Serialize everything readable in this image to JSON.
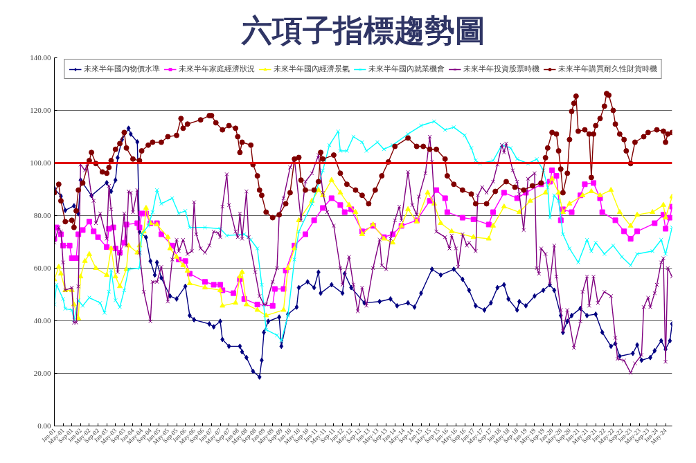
{
  "chart_data": {
    "type": "line",
    "title": "六項子指標趨勢圖",
    "xlim": [
      "2001-01",
      "2024-08"
    ],
    "ylim": [
      0,
      140
    ],
    "yticks": [
      {
        "value": 0,
        "label": "0.00"
      },
      {
        "value": 20,
        "label": "20.00"
      },
      {
        "value": 40,
        "label": "40.00"
      },
      {
        "value": 60,
        "label": "60.00"
      },
      {
        "value": 80,
        "label": "80.00"
      },
      {
        "value": 100,
        "label": "100.00"
      },
      {
        "value": 120,
        "label": "120.00"
      },
      {
        "value": 140,
        "label": "140.00"
      }
    ],
    "xticks": [
      {
        "value": "2001-01",
        "label": "Jan-01"
      },
      {
        "value": "2001-05",
        "label": "May-01"
      },
      {
        "value": "2001-09",
        "label": "Sep-01"
      },
      {
        "value": "2002-01",
        "label": "Jan-02"
      },
      {
        "value": "2002-05",
        "label": "May-02"
      },
      {
        "value": "2002-09",
        "label": "Sep-02"
      },
      {
        "value": "2003-01",
        "label": "Jan-03"
      },
      {
        "value": "2003-05",
        "label": "May-03"
      },
      {
        "value": "2003-09",
        "label": "Sep-03"
      },
      {
        "value": "2004-01",
        "label": "Jan-04"
      },
      {
        "value": "2004-05",
        "label": "May-04"
      },
      {
        "value": "2004-09",
        "label": "Sep-04"
      },
      {
        "value": "2005-01",
        "label": "Jan-05"
      },
      {
        "value": "2005-05",
        "label": "May-05"
      },
      {
        "value": "2005-09",
        "label": "Sep-05"
      },
      {
        "value": "2006-01",
        "label": "Jan-06"
      },
      {
        "value": "2006-05",
        "label": "May-06"
      },
      {
        "value": "2006-09",
        "label": "Sep-06"
      },
      {
        "value": "2007-01",
        "label": "Jan-07"
      },
      {
        "value": "2007-05",
        "label": "May-07"
      },
      {
        "value": "2007-09",
        "label": "Sep-07"
      },
      {
        "value": "2008-01",
        "label": "Jan-08"
      },
      {
        "value": "2008-05",
        "label": "May-08"
      },
      {
        "value": "2008-09",
        "label": "Sep-08"
      },
      {
        "value": "2009-01",
        "label": "Jan-09"
      },
      {
        "value": "2009-05",
        "label": "May-09"
      },
      {
        "value": "2009-09",
        "label": "Sep-09"
      },
      {
        "value": "2010-01",
        "label": "Jan-10"
      },
      {
        "value": "2010-05",
        "label": "May-10"
      },
      {
        "value": "2010-09",
        "label": "Sep-10"
      },
      {
        "value": "2011-01",
        "label": "Jan-11"
      },
      {
        "value": "2011-05",
        "label": "May-11"
      },
      {
        "value": "2011-09",
        "label": "Sep-11"
      },
      {
        "value": "2012-01",
        "label": "Jan-12"
      },
      {
        "value": "2012-05",
        "label": "May-12"
      },
      {
        "value": "2012-09",
        "label": "Sep-12"
      },
      {
        "value": "2013-01",
        "label": "Jan-13"
      },
      {
        "value": "2013-05",
        "label": "May-13"
      },
      {
        "value": "2013-09",
        "label": "Sep-13"
      },
      {
        "value": "2014-01",
        "label": "Jan-14"
      },
      {
        "value": "2014-05",
        "label": "May-14"
      },
      {
        "value": "2014-09",
        "label": "Sep-14"
      },
      {
        "value": "2015-01",
        "label": "Jan-15"
      },
      {
        "value": "2015-05",
        "label": "May-15"
      },
      {
        "value": "2015-09",
        "label": "Sep-15"
      },
      {
        "value": "2016-01",
        "label": "Jan-16"
      },
      {
        "value": "2016-05",
        "label": "May-16"
      },
      {
        "value": "2016-09",
        "label": "Sep-16"
      },
      {
        "value": "2017-01",
        "label": "Jan-17"
      },
      {
        "value": "2017-05",
        "label": "May-17"
      },
      {
        "value": "2017-09",
        "label": "Sep-17"
      },
      {
        "value": "2018-01",
        "label": "Jan-18"
      },
      {
        "value": "2018-05",
        "label": "May-18"
      },
      {
        "value": "2018-09",
        "label": "Sep-18"
      },
      {
        "value": "2019-01",
        "label": "Jan-19"
      },
      {
        "value": "2019-05",
        "label": "May-19"
      },
      {
        "value": "2019-09",
        "label": "Sep-19"
      },
      {
        "value": "2020-01",
        "label": "Jan-20"
      },
      {
        "value": "2020-05",
        "label": "May-20"
      },
      {
        "value": "2020-09",
        "label": "Sep-20"
      },
      {
        "value": "2021-01",
        "label": "Jan-21"
      },
      {
        "value": "2021-05",
        "label": "May-21"
      },
      {
        "value": "2021-09",
        "label": "Sep-21"
      },
      {
        "value": "2022-01",
        "label": "Jan-22"
      },
      {
        "value": "2022-05",
        "label": "May-22"
      },
      {
        "value": "2022-09",
        "label": "Sep-22"
      },
      {
        "value": "2023-01",
        "label": "Jan-23"
      },
      {
        "value": "2023-05",
        "label": "May-23"
      },
      {
        "value": "2023-09",
        "label": "Sep-23"
      },
      {
        "value": "2024-01",
        "label": "Jan-24"
      },
      {
        "value": "2024-05",
        "label": "May-24"
      }
    ],
    "grid": "y",
    "legend": "top",
    "ref_lines": [
      {
        "axis": "y",
        "value": 100,
        "color": "#e00000"
      }
    ],
    "series": [
      {
        "name": "未來半年國內物價水準",
        "color": "#000080",
        "marker": "diamond",
        "x": [
          "2001-01",
          "2001-04",
          "2001-06",
          "2001-10",
          "2001-12",
          "2002-01",
          "2002-06",
          "2003-01",
          "2003-03",
          "2003-05",
          "2003-06",
          "2003-08",
          "2003-11",
          "2003-12",
          "2004-03",
          "2004-04",
          "2004-07",
          "2004-09",
          "2004-11",
          "2004-12",
          "2005-02",
          "2005-06",
          "2005-09",
          "2006-01",
          "2006-03",
          "2006-05",
          "2006-12",
          "2007-02",
          "2007-05",
          "2007-06",
          "2007-09",
          "2008-02",
          "2008-03",
          "2008-05",
          "2008-08",
          "2008-11",
          "2008-12",
          "2009-01",
          "2009-03",
          "2009-08",
          "2009-09",
          "2009-12",
          "2010-04",
          "2010-05",
          "2010-09",
          "2010-12",
          "2011-02",
          "2011-03",
          "2011-08",
          "2012-01",
          "2012-02",
          "2012-05",
          "2012-11",
          "2013-06",
          "2013-11",
          "2014-02",
          "2014-07",
          "2014-10",
          "2015-01",
          "2015-06",
          "2015-10",
          "2016-04",
          "2016-08",
          "2016-11",
          "2017-02",
          "2017-06",
          "2017-09",
          "2017-12",
          "2018-03",
          "2018-05",
          "2018-09",
          "2018-10",
          "2019-01",
          "2019-05",
          "2019-09",
          "2019-12",
          "2020-02",
          "2020-05",
          "2020-06",
          "2020-08",
          "2020-10",
          "2021-02",
          "2021-05",
          "2021-09",
          "2021-12",
          "2022-04",
          "2022-06",
          "2022-08",
          "2023-02",
          "2023-04",
          "2023-06",
          "2023-10",
          "2023-12",
          "2024-03",
          "2024-05",
          "2024-07",
          "2024-08"
        ],
        "values": [
          90.3,
          87.4,
          82,
          83.7,
          80.7,
          93.5,
          87.6,
          92.5,
          89.2,
          93.5,
          102,
          108.9,
          113.2,
          111,
          108,
          73.8,
          71.7,
          62.7,
          57.4,
          62.2,
          56.3,
          49.4,
          48.3,
          53.1,
          42,
          40.4,
          38.8,
          37.7,
          39.8,
          32.9,
          30.3,
          30.3,
          28.2,
          26,
          20.8,
          18.6,
          25,
          35.6,
          39.8,
          41.4,
          30.3,
          42.5,
          45.2,
          52.6,
          54.8,
          52.6,
          58.5,
          50.5,
          53.7,
          50.5,
          57.9,
          52.6,
          46.8,
          47.3,
          48.3,
          45.7,
          46.8,
          45.2,
          50.5,
          59.6,
          57.4,
          59.6,
          55.8,
          51.6,
          45.7,
          44.1,
          46.8,
          52.6,
          53.7,
          48.3,
          44.1,
          47.3,
          45.7,
          49.4,
          51.6,
          53.7,
          51.6,
          42,
          35.6,
          39.8,
          42,
          44.7,
          42,
          42.5,
          35.6,
          30.3,
          31.3,
          26.5,
          27.6,
          30.8,
          25,
          26,
          28.6,
          32.4,
          29.2,
          32.4,
          38.8
        ]
      },
      {
        "name": "未來半年家庭經濟狀況",
        "color": "#ff00ff",
        "marker": "square",
        "x": [
          "2001-01",
          "2001-02",
          "2001-04",
          "2001-05",
          "2001-08",
          "2001-09",
          "2001-11",
          "2001-12",
          "2002-02",
          "2002-05",
          "2002-07",
          "2002-09",
          "2003-01",
          "2003-02",
          "2003-04",
          "2003-05",
          "2003-07",
          "2003-09",
          "2003-10",
          "2004-03",
          "2004-04",
          "2004-05",
          "2004-07",
          "2004-09",
          "2004-12",
          "2005-02",
          "2005-07",
          "2005-10",
          "2006-01",
          "2006-03",
          "2006-10",
          "2007-02",
          "2007-05",
          "2007-06",
          "2007-11",
          "2008-02",
          "2008-04",
          "2008-10",
          "2009-05",
          "2009-06",
          "2009-10",
          "2009-11",
          "2010-03",
          "2010-08",
          "2010-12",
          "2011-04",
          "2011-08",
          "2011-12",
          "2012-02",
          "2012-05",
          "2012-10",
          "2013-03",
          "2013-08",
          "2013-12",
          "2014-04",
          "2014-11",
          "2015-05",
          "2015-08",
          "2015-12",
          "2016-01",
          "2016-08",
          "2017-01",
          "2017-08",
          "2017-10",
          "2018-03",
          "2018-09",
          "2019-01",
          "2019-08",
          "2019-12",
          "2020-01",
          "2020-03",
          "2020-05",
          "2020-06",
          "2020-10",
          "2021-02",
          "2021-04",
          "2021-08",
          "2021-11",
          "2021-12",
          "2022-06",
          "2022-10",
          "2023-01",
          "2023-04",
          "2023-12",
          "2024-04",
          "2024-05",
          "2024-07",
          "2024-08"
        ],
        "values": [
          71.2,
          75.5,
          72.9,
          68.6,
          68.6,
          63.8,
          63.8,
          72.9,
          74.5,
          77.7,
          74,
          71.8,
          68,
          75,
          75.5,
          67.5,
          65.9,
          69.7,
          76.6,
          77.1,
          75.5,
          80.8,
          80.8,
          77.1,
          77.1,
          72.9,
          68.6,
          63.3,
          62.7,
          57.9,
          54.8,
          53.7,
          53.7,
          51.6,
          50.5,
          55.8,
          48.3,
          46.2,
          45.7,
          52.1,
          52.1,
          59.1,
          68.6,
          72.9,
          78.2,
          82.9,
          86.6,
          84,
          81.3,
          82.4,
          74,
          76.1,
          71.8,
          72.9,
          76.1,
          78.2,
          85.6,
          89.7,
          86.6,
          81.3,
          79.2,
          78.6,
          76.6,
          81.3,
          88.7,
          86.6,
          88.7,
          91.9,
          92.9,
          97.2,
          95.1,
          78.2,
          82.4,
          81.3,
          87.7,
          91.9,
          92.4,
          86.6,
          81.3,
          78.2,
          74,
          71.2,
          74,
          77.1,
          80.3,
          75,
          79.2,
          83.4
        ]
      },
      {
        "name": "未來半年國內經濟景氣",
        "color": "#ffff00",
        "marker": "triangle",
        "x": [
          "2001-01",
          "2001-03",
          "2001-04",
          "2001-06",
          "2001-09",
          "2001-10",
          "2001-12",
          "2002-01",
          "2002-03",
          "2002-05",
          "2002-08",
          "2003-01",
          "2003-03",
          "2003-05",
          "2003-07",
          "2003-10",
          "2003-11",
          "2004-03",
          "2004-04",
          "2004-06",
          "2004-07",
          "2004-09",
          "2004-12",
          "2005-05",
          "2005-06",
          "2005-09",
          "2005-12",
          "2006-02",
          "2006-03",
          "2006-10",
          "2007-05",
          "2007-06",
          "2007-12",
          "2008-02",
          "2008-03",
          "2008-05",
          "2008-10",
          "2009-02",
          "2009-10",
          "2009-12",
          "2010-03",
          "2010-05",
          "2010-11",
          "2011-02",
          "2011-04",
          "2011-08",
          "2011-12",
          "2012-04",
          "2012-07",
          "2012-10",
          "2013-03",
          "2013-08",
          "2013-12",
          "2014-04",
          "2014-07",
          "2014-11",
          "2015-04",
          "2015-07",
          "2015-10",
          "2016-03",
          "2017-01",
          "2017-08",
          "2017-10",
          "2018-03",
          "2018-10",
          "2019-03",
          "2019-10",
          "2020-01",
          "2020-04",
          "2020-06",
          "2020-09",
          "2021-03",
          "2021-07",
          "2021-11",
          "2022-04",
          "2022-08",
          "2023-01",
          "2023-04",
          "2023-11",
          "2024-04",
          "2024-05",
          "2024-08"
        ],
        "values": [
          55.7,
          60.5,
          57.9,
          51.6,
          51.6,
          46.2,
          40.9,
          56.8,
          62.7,
          65.3,
          60,
          57.4,
          67.5,
          56.8,
          53.1,
          59.6,
          68.6,
          65.9,
          68.6,
          73.9,
          82.9,
          77.1,
          76.6,
          71.8,
          67.5,
          64.3,
          61.1,
          59,
          54.2,
          52.6,
          51.6,
          45.7,
          46.8,
          56.8,
          58.5,
          46.2,
          44.1,
          42,
          44.1,
          60,
          67.5,
          78.2,
          85.6,
          89.7,
          87.7,
          93.5,
          88.7,
          84,
          81.3,
          72.9,
          76.6,
          71.2,
          69.7,
          76.1,
          82.4,
          77.7,
          88.7,
          84.5,
          77.1,
          74,
          71.8,
          71.2,
          76.1,
          83.4,
          81.3,
          85.6,
          88.7,
          94,
          88.7,
          81.3,
          84.5,
          87.7,
          89.2,
          87.7,
          89.7,
          81.3,
          76.1,
          80.3,
          81.3,
          84,
          79.2,
          87.2
        ]
      },
      {
        "name": "未來半年國內就業機會",
        "color": "#00ffff",
        "marker": "cross",
        "x": [
          "2001-01",
          "2001-02",
          "2001-05",
          "2001-06",
          "2001-09",
          "2001-10",
          "2001-12",
          "2002-02",
          "2002-05",
          "2002-10",
          "2002-12",
          "2003-02",
          "2003-03",
          "2003-05",
          "2003-07",
          "2003-09",
          "2003-11",
          "2004-04",
          "2004-05",
          "2004-08",
          "2004-10",
          "2004-12",
          "2005-02",
          "2005-07",
          "2005-10",
          "2006-01",
          "2006-03",
          "2006-10",
          "2007-05",
          "2007-08",
          "2008-04",
          "2008-07",
          "2008-10",
          "2008-12",
          "2009-02",
          "2009-07",
          "2009-09",
          "2009-12",
          "2010-03",
          "2010-05",
          "2010-11",
          "2011-04",
          "2011-07",
          "2011-11",
          "2011-12",
          "2012-03",
          "2012-06",
          "2012-10",
          "2012-12",
          "2013-05",
          "2013-08",
          "2013-12",
          "2014-07",
          "2015-01",
          "2015-07",
          "2015-12",
          "2016-04",
          "2016-09",
          "2016-12",
          "2017-02",
          "2017-04",
          "2017-10",
          "2018-02",
          "2018-06",
          "2018-09",
          "2019-02",
          "2019-06",
          "2019-09",
          "2019-11",
          "2019-12",
          "2020-02",
          "2020-04",
          "2020-06",
          "2020-09",
          "2021-01",
          "2021-05",
          "2021-07",
          "2021-09",
          "2022-01",
          "2022-05",
          "2022-09",
          "2023-01",
          "2023-04",
          "2023-11",
          "2024-03",
          "2024-05",
          "2024-08"
        ],
        "values": [
          46.2,
          53.7,
          48.3,
          44.6,
          44.1,
          40.4,
          47.8,
          45.7,
          48.8,
          46.8,
          43,
          51.1,
          59.1,
          47.8,
          45.2,
          51.6,
          59.6,
          60,
          72.9,
          76.1,
          81.3,
          89.7,
          84.5,
          86.6,
          80.8,
          81.8,
          75.5,
          75.5,
          75,
          72.4,
          72.9,
          70.8,
          67.5,
          53.7,
          36.6,
          34.5,
          32.4,
          42,
          63.3,
          73.9,
          84.5,
          97.2,
          106.8,
          112,
          104.6,
          104.6,
          110,
          107.9,
          104.6,
          107.9,
          105.2,
          106.8,
          111,
          114.2,
          115.8,
          112.6,
          113.6,
          110.5,
          105.7,
          100.9,
          99.8,
          100.9,
          106.8,
          105.7,
          101.5,
          99.8,
          101.5,
          97.2,
          90.8,
          79.2,
          87.7,
          85.6,
          72.9,
          67.5,
          62.2,
          70.8,
          66.5,
          69.7,
          65.4,
          68.6,
          64.3,
          61.1,
          65.4,
          66.5,
          70.8,
          65.4,
          75.5
        ]
      },
      {
        "name": "未來半年投資股票時機",
        "color": "#800080",
        "marker": "cross",
        "x": [
          "2001-01",
          "2001-03",
          "2001-04",
          "2001-05",
          "2001-06",
          "2001-09",
          "2001-10",
          "2001-11",
          "2001-12",
          "2002-01",
          "2002-03",
          "2002-04",
          "2002-06",
          "2002-07",
          "2002-08",
          "2002-10",
          "2003-01",
          "2003-02",
          "2003-03",
          "2003-06",
          "2003-07",
          "2003-09",
          "2003-10",
          "2003-11",
          "2003-12",
          "2004-01",
          "2004-03",
          "2004-04",
          "2004-06",
          "2004-09",
          "2004-10",
          "2004-12",
          "2005-02",
          "2005-05",
          "2005-07",
          "2005-09",
          "2005-10",
          "2005-12",
          "2006-02",
          "2006-04",
          "2006-05",
          "2006-06",
          "2006-08",
          "2006-10",
          "2006-12",
          "2007-02",
          "2007-04",
          "2007-05",
          "2007-06",
          "2007-08",
          "2007-09",
          "2007-12",
          "2008-01",
          "2008-02",
          "2008-03",
          "2008-05",
          "2008-06",
          "2008-09",
          "2008-11",
          "2009-01",
          "2009-02",
          "2009-05",
          "2009-07",
          "2009-08",
          "2009-10",
          "2010-01",
          "2010-03",
          "2010-06",
          "2010-08",
          "2010-11",
          "2011-02",
          "2011-04",
          "2011-06",
          "2011-09",
          "2011-12",
          "2012-01",
          "2012-04",
          "2012-06",
          "2012-08",
          "2012-10",
          "2012-12",
          "2013-03",
          "2013-06",
          "2013-07",
          "2013-09",
          "2013-11",
          "2014-01",
          "2014-03",
          "2014-04",
          "2014-07",
          "2014-09",
          "2014-11",
          "2014-12",
          "2015-03",
          "2015-05",
          "2015-06",
          "2015-08",
          "2015-12",
          "2016-02",
          "2016-03",
          "2016-05",
          "2016-06",
          "2016-08",
          "2016-10",
          "2016-11",
          "2017-02",
          "2017-03",
          "2017-05",
          "2017-07",
          "2017-10",
          "2017-12",
          "2018-02",
          "2018-03",
          "2018-04",
          "2018-07",
          "2018-09",
          "2018-10",
          "2018-12",
          "2019-02",
          "2019-05",
          "2019-06",
          "2019-07",
          "2019-08",
          "2019-10",
          "2019-12",
          "2020-02",
          "2020-03",
          "2020-05",
          "2020-06",
          "2020-08",
          "2020-11",
          "2021-02",
          "2021-03",
          "2021-05",
          "2021-06",
          "2021-08",
          "2021-10",
          "2022-01",
          "2022-04",
          "2022-06",
          "2022-07",
          "2022-10",
          "2023-01",
          "2023-03",
          "2023-06",
          "2023-07",
          "2023-09",
          "2023-10",
          "2023-12",
          "2024-01",
          "2024-03",
          "2024-04",
          "2024-05",
          "2024-06",
          "2024-08"
        ],
        "values": [
          69.7,
          75.5,
          73.9,
          62.2,
          51.6,
          52.6,
          39.3,
          39.3,
          53.1,
          99.4,
          97.2,
          99.4,
          87.7,
          85.6,
          77.1,
          80.8,
          71.2,
          91.3,
          82.4,
          58.5,
          65.4,
          80.8,
          68.6,
          89.2,
          88.7,
          81.3,
          89.7,
          65.9,
          51,
          39.8,
          54.8,
          54.8,
          60.5,
          47.3,
          63.3,
          70.8,
          66.5,
          70.8,
          65.4,
          66.5,
          85.1,
          72.9,
          67.5,
          65.9,
          68.6,
          73.9,
          73.4,
          71.8,
          83.4,
          95.7,
          84,
          73.9,
          71.8,
          80.8,
          71.2,
          89.2,
          71.8,
          58.5,
          49.4,
          46.2,
          46.2,
          54.8,
          60,
          80.3,
          86.6,
          98.3,
          101.5,
          78.2,
          92.9,
          96.1,
          103,
          88.7,
          81.3,
          76.1,
          60,
          53.7,
          64.3,
          53.7,
          43.6,
          52.6,
          45.7,
          60,
          70.8,
          61.1,
          59.6,
          71.2,
          78.2,
          83.4,
          78.2,
          96.6,
          84,
          80.3,
          87.2,
          96.1,
          110,
          100.4,
          73.9,
          71.8,
          67.5,
          72.4,
          67.5,
          60.5,
          72.9,
          68.6,
          69.7,
          66.5,
          87.7,
          90.8,
          88.7,
          92.9,
          99.4,
          106.8,
          104,
          107.4,
          97.2,
          92.9,
          88.2,
          74.5,
          94,
          96.1,
          60,
          57.9,
          67.5,
          65.4,
          54.2,
          68.6,
          56.8,
          44.1,
          36.1,
          44.1,
          29.7,
          39.8,
          51,
          56.8,
          45.7,
          56.8,
          46.8,
          51,
          49.4,
          33.5,
          25.5,
          24.9,
          20.2,
          23.8,
          27,
          45.2,
          48.8,
          45.2,
          50.5,
          53.7,
          62.2,
          63.8,
          24.4,
          60,
          56.8
        ]
      },
      {
        "name": "未來半年購買耐久性財貨時機",
        "color": "#800000",
        "marker": "circle",
        "x": [
          "2001-01",
          "2001-03",
          "2001-04",
          "2001-06",
          "2001-09",
          "2001-10",
          "2001-11",
          "2001-12",
          "2002-02",
          "2002-05",
          "2002-06",
          "2002-08",
          "2002-11",
          "2003-01",
          "2003-02",
          "2003-03",
          "2003-05",
          "2003-07",
          "2003-09",
          "2003-10",
          "2004-01",
          "2004-04",
          "2004-05",
          "2004-08",
          "2004-10",
          "2005-02",
          "2005-05",
          "2005-09",
          "2005-11",
          "2005-12",
          "2006-02",
          "2006-08",
          "2006-12",
          "2007-01",
          "2007-03",
          "2007-06",
          "2007-09",
          "2007-12",
          "2008-01",
          "2008-02",
          "2008-03",
          "2008-07",
          "2008-08",
          "2008-10",
          "2008-11",
          "2008-12",
          "2009-02",
          "2009-05",
          "2009-08",
          "2009-11",
          "2010-01",
          "2010-03",
          "2010-05",
          "2010-06",
          "2010-08",
          "2010-12",
          "2011-02",
          "2011-03",
          "2011-04",
          "2011-09",
          "2011-12",
          "2012-03",
          "2012-07",
          "2012-10",
          "2013-01",
          "2013-04",
          "2013-07",
          "2013-10",
          "2014-01",
          "2014-07",
          "2014-11",
          "2015-02",
          "2015-05",
          "2015-08",
          "2015-12",
          "2016-01",
          "2016-04",
          "2016-08",
          "2016-12",
          "2017-02",
          "2017-07",
          "2017-11",
          "2018-04",
          "2018-08",
          "2018-12",
          "2019-04",
          "2019-08",
          "2019-10",
          "2019-11",
          "2020-01",
          "2020-03",
          "2020-04",
          "2020-05",
          "2020-06",
          "2020-08",
          "2020-09",
          "2020-10",
          "2020-11",
          "2020-12",
          "2021-01",
          "2021-04",
          "2021-06",
          "2021-07",
          "2021-08",
          "2021-09",
          "2021-11",
          "2022-01",
          "2022-02",
          "2022-03",
          "2022-05",
          "2022-06",
          "2022-08",
          "2022-10",
          "2022-11",
          "2023-01",
          "2023-03",
          "2023-07",
          "2023-09",
          "2024-01",
          "2024-04",
          "2024-05",
          "2024-06",
          "2024-08"
        ],
        "values": [
          88.7,
          91.9,
          85.6,
          77.7,
          78.2,
          75.5,
          81.8,
          89.7,
          92.4,
          100.9,
          104,
          99.8,
          96.6,
          96.1,
          98.3,
          100.9,
          105.2,
          107.4,
          111.6,
          105.7,
          101.5,
          100.9,
          104.6,
          106.8,
          107.9,
          107.9,
          110,
          110.5,
          116.9,
          113.2,
          114.8,
          116.4,
          118,
          118,
          115.3,
          112.6,
          114.2,
          113.2,
          110,
          104,
          107.9,
          106.8,
          99.4,
          95.1,
          89.7,
          87.7,
          81.3,
          79.2,
          80.3,
          84.5,
          88.7,
          101.5,
          102.1,
          93.5,
          89.7,
          89.7,
          92.9,
          104,
          101.5,
          103,
          96.1,
          91.9,
          89.7,
          87.7,
          84.5,
          89.7,
          95.1,
          100.4,
          106.3,
          109.5,
          106.3,
          106.3,
          105.2,
          105.2,
          101.5,
          95.1,
          91.9,
          89.7,
          88.2,
          84.5,
          84.5,
          89.2,
          92.9,
          90.8,
          89.7,
          91.3,
          92.4,
          102,
          105.7,
          111.6,
          111,
          104.6,
          97.7,
          88.7,
          96.1,
          108.9,
          119.6,
          122.7,
          125.4,
          112.1,
          112.6,
          111,
          94.5,
          111,
          114.2,
          116.9,
          121.6,
          126.4,
          125.8,
          120,
          114.8,
          111,
          108.9,
          104.6,
          99.8,
          107.9,
          110,
          111.6,
          112.6,
          112.1,
          107.9,
          111,
          111.6
        ]
      }
    ]
  }
}
